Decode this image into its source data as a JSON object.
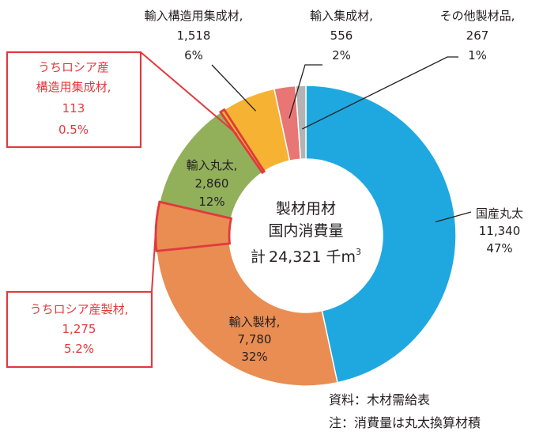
{
  "chart_data": {
    "type": "donut",
    "center": {
      "line1": "製材用材",
      "line2": "国内消費量",
      "total_prefix": "計",
      "total": "24,321",
      "unit": "千m",
      "unit_sup": "3"
    },
    "segments": [
      {
        "name": "国産丸太",
        "value": 11340,
        "value_label": "11,340",
        "pct": "47%",
        "color": "#1fa8e0"
      },
      {
        "name": "輸入製材,",
        "value": 7780,
        "value_label": "7,780",
        "pct": "32%",
        "color": "#e98d52"
      },
      {
        "name": "輸入丸太,",
        "value": 2860,
        "value_label": "2,860",
        "pct": "12%",
        "color": "#92b05a"
      },
      {
        "name": "輸入構造用集成材,",
        "value": 1518,
        "value_label": "1,518",
        "pct": "6%",
        "color": "#f6b232"
      },
      {
        "name": "輸入集成材,",
        "value": 556,
        "value_label": "556",
        "pct": "2%",
        "color": "#e87675"
      },
      {
        "name": "その他製材品,",
        "value": 267,
        "value_label": "267",
        "pct": "1%",
        "color": "#b3b3b3"
      }
    ],
    "highlights": [
      {
        "line1": "うちロシア産",
        "line2": "構造用集成材,",
        "value": "113",
        "pct": "0.5%",
        "of": "輸入構造用集成材,",
        "color": "#e03a3e"
      },
      {
        "line1": "うちロシア産製材,",
        "value": "1,275",
        "pct": "5.2%",
        "of": "輸入製材,",
        "color": "#e03a3e"
      }
    ],
    "notes": [
      "資料：木材需給表",
      "注：消費量は丸太換算材積"
    ]
  }
}
